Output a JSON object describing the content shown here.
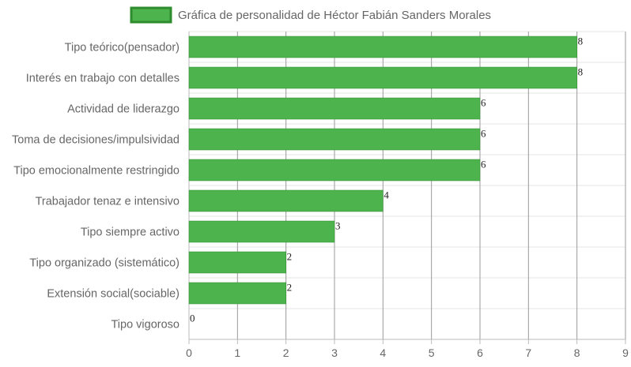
{
  "chart_data": {
    "type": "bar",
    "orientation": "horizontal",
    "categories": [
      "Tipo teórico(pensador)",
      "Interés en trabajo con detalles",
      "Actividad de liderazgo",
      "Toma de decisiones/impulsividad",
      "Tipo emocionalmente restringido",
      "Trabajador tenaz e intensivo",
      "Tipo siempre activo",
      "Tipo organizado (sistemático)",
      "Extensión social(sociable)",
      "Tipo vigoroso"
    ],
    "series": [
      {
        "name": "Gráfica de personalidad de Héctor Fabián Sanders Morales",
        "values": [
          8,
          8,
          6,
          6,
          6,
          4,
          3,
          2,
          2,
          0
        ],
        "color": "#4db34d",
        "border_color": "#2e8b2e"
      }
    ],
    "xlim": [
      0,
      9
    ],
    "x_ticks": [
      0,
      1,
      2,
      3,
      4,
      5,
      6,
      7,
      8,
      9
    ],
    "grid": true,
    "legend_position": "top",
    "data_labels": true
  }
}
